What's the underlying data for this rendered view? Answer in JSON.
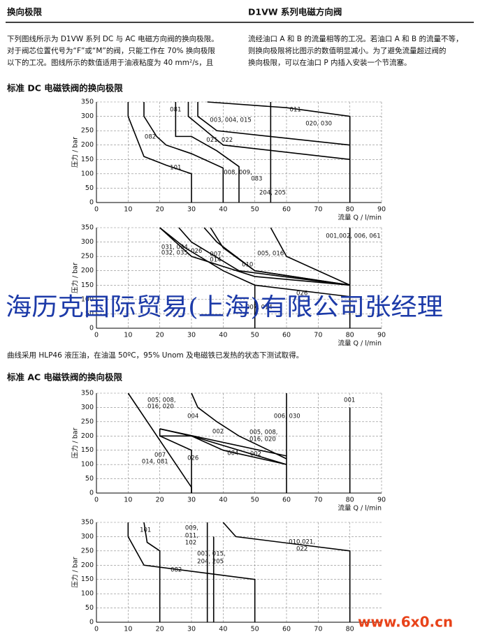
{
  "header": {
    "left": "换向极限",
    "right": "D1VW 系列电磁方向阀"
  },
  "intro": {
    "left": [
      "下列图线所示为 D1VW 系列 DC 与 AC 电磁方向阀的换向极限。",
      "对于阀芯位置代号为“F”或“M”的阀，只能工作在 70% 换向极限",
      "以下的工况。图线所示的数值适用于油液粘度为 40 mm²/s，且"
    ],
    "right": [
      "流经油口 A 和 B 的流量相等的工况。若油口 A 和 B 的流量不等，",
      "则换向极限将比图示的数值明显减小。为了避免流量超过阀的",
      "换向极限，可以在油口 P 内插入安装一个节流塞。"
    ]
  },
  "sections": [
    "标准 DC 电磁铁阀的换向极限",
    "标准 AC 电磁铁阀的换向极限"
  ],
  "caption": "曲线采用 HLP46 液压油，在油温 50ºC，95% Unom 及电磁铁已发热的状态下测试取得。",
  "watermark": "海历克国际贸易(上海)有限公司张经理",
  "watermark_site": "www.6x0.cn",
  "chart_data": [
    {
      "type": "line",
      "x_label": "流量 Q / l/min",
      "y_label": "压力 / bar",
      "color": "#000000",
      "grid": true,
      "xlim": [
        0,
        90
      ],
      "ylim": [
        0,
        350
      ],
      "xticks": [
        0,
        10,
        20,
        30,
        40,
        50,
        60,
        70,
        80,
        90
      ],
      "yticks": [
        0,
        50,
        100,
        150,
        200,
        250,
        300,
        350
      ],
      "series": [
        {
          "x": [
            10,
            10,
            15,
            22,
            30,
            30
          ],
          "values": [
            350,
            300,
            160,
            130,
            100,
            0
          ]
        },
        {
          "x": [
            15,
            15,
            19,
            22,
            30,
            40,
            40
          ],
          "values": [
            350,
            300,
            230,
            200,
            170,
            120,
            0
          ]
        },
        {
          "x": [
            25,
            25,
            30,
            38,
            45,
            45
          ],
          "values": [
            350,
            230,
            230,
            180,
            125,
            0
          ]
        },
        {
          "x": [
            32,
            32,
            38,
            80
          ],
          "values": [
            350,
            300,
            250,
            200
          ]
        },
        {
          "x": [
            29,
            29,
            40,
            80
          ],
          "values": [
            350,
            300,
            200,
            150
          ]
        },
        {
          "x": [
            35,
            60,
            80,
            80
          ],
          "values": [
            350,
            330,
            300,
            0
          ]
        },
        {
          "x": [
            55,
            55
          ],
          "values": [
            350,
            0
          ]
        }
      ],
      "annotations": [
        {
          "text": "081",
          "x": 23.2,
          "y": 323
        },
        {
          "text": "003, 004, 015",
          "x": 35.8,
          "y": 287
        },
        {
          "text": "011",
          "x": 61,
          "y": 323
        },
        {
          "text": "020, 030",
          "x": 66,
          "y": 275
        },
        {
          "text": "082",
          "x": 15.2,
          "y": 229
        },
        {
          "text": "021, 022",
          "x": 34.7,
          "y": 217
        },
        {
          "text": "101",
          "x": 23.2,
          "y": 122
        },
        {
          "text": "008, 009,",
          "x": 40.2,
          "y": 105
        },
        {
          "text": "083",
          "x": 48.8,
          "y": 83
        },
        {
          "text": "204, 205",
          "x": 51.4,
          "y": 34
        }
      ]
    },
    {
      "type": "line",
      "x_label": "流量 Q / l/min",
      "y_label": "压力 / bar",
      "color": "#000000",
      "grid": true,
      "xlim": [
        0,
        90
      ],
      "ylim": [
        0,
        350
      ],
      "xticks": [
        0,
        10,
        20,
        30,
        40,
        50,
        60,
        70,
        80,
        90
      ],
      "yticks": [
        0,
        50,
        100,
        150,
        200,
        250,
        300,
        350
      ],
      "series": [
        {
          "x": [
            80,
            80
          ],
          "values": [
            350,
            0
          ]
        },
        {
          "x": [
            20,
            30,
            50,
            80
          ],
          "values": [
            350,
            250,
            180,
            150
          ]
        },
        {
          "x": [
            20,
            28,
            40,
            50,
            80
          ],
          "values": [
            350,
            280,
            200,
            150,
            110
          ]
        },
        {
          "x": [
            26,
            30,
            45,
            80
          ],
          "values": [
            350,
            300,
            200,
            150
          ]
        },
        {
          "x": [
            34,
            38,
            50,
            80
          ],
          "values": [
            350,
            300,
            200,
            150
          ]
        },
        {
          "x": [
            55,
            60,
            80
          ],
          "values": [
            350,
            250,
            150
          ]
        },
        {
          "x": [
            36,
            40,
            50,
            80
          ],
          "values": [
            350,
            280,
            200,
            150
          ]
        },
        {
          "x": [
            50,
            50
          ],
          "values": [
            150,
            0
          ]
        }
      ],
      "annotations": [
        {
          "text": "001,002, 006, 061",
          "x": 72.4,
          "y": 321
        },
        {
          "text": "031, 034,",
          "x": 20.5,
          "y": 282
        },
        {
          "text": "032, 035,",
          "x": 20.5,
          "y": 263
        },
        {
          "text": "026",
          "x": 29.8,
          "y": 268
        },
        {
          "text": "007,",
          "x": 35.8,
          "y": 258
        },
        {
          "text": "014",
          "x": 35.8,
          "y": 238
        },
        {
          "text": "005, 016",
          "x": 50.8,
          "y": 260
        },
        {
          "text": "010",
          "x": 45.9,
          "y": 221
        },
        {
          "text": "026",
          "x": 63.1,
          "y": 122
        },
        {
          "text": "007, 014",
          "x": 47.2,
          "y": 73
        }
      ]
    },
    {
      "type": "line",
      "x_label": "流量 Q / l/min",
      "y_label": "压力 / bar",
      "color": "#000000",
      "grid": true,
      "xlim": [
        0,
        90
      ],
      "ylim": [
        0,
        350
      ],
      "xticks": [
        0,
        10,
        20,
        30,
        40,
        50,
        60,
        70,
        80,
        90
      ],
      "yticks": [
        0,
        50,
        100,
        150,
        200,
        250,
        300,
        350
      ],
      "series": [
        {
          "x": [
            10,
            30,
            30
          ],
          "values": [
            350,
            20,
            0
          ]
        },
        {
          "x": [
            30,
            32,
            38,
            45,
            60
          ],
          "values": [
            350,
            300,
            250,
            200,
            120
          ]
        },
        {
          "x": [
            20,
            60
          ],
          "values": [
            225,
            130
          ]
        },
        {
          "x": [
            20,
            30,
            60
          ],
          "values": [
            200,
            200,
            100
          ]
        },
        {
          "x": [
            20,
            30,
            40,
            60
          ],
          "values": [
            225,
            200,
            150,
            100
          ]
        },
        {
          "x": [
            20,
            20,
            30,
            30
          ],
          "values": [
            225,
            200,
            150,
            0
          ]
        },
        {
          "x": [
            60,
            60
          ],
          "values": [
            350,
            0
          ]
        },
        {
          "x": [
            80,
            80
          ],
          "values": [
            300,
            0
          ]
        }
      ],
      "annotations": [
        {
          "text": "005, 008,",
          "x": 16.1,
          "y": 325
        },
        {
          "text": "016, 020",
          "x": 16.1,
          "y": 303
        },
        {
          "text": "004",
          "x": 28.7,
          "y": 269
        },
        {
          "text": "002",
          "x": 36.6,
          "y": 215
        },
        {
          "text": "005, 008,",
          "x": 48.3,
          "y": 213
        },
        {
          "text": "016, 020",
          "x": 48.3,
          "y": 188
        },
        {
          "text": "006, 030",
          "x": 56,
          "y": 269
        },
        {
          "text": "001",
          "x": 78.1,
          "y": 325
        },
        {
          "text": "007",
          "x": 18.3,
          "y": 134
        },
        {
          "text": "014, 081",
          "x": 14.3,
          "y": 110
        },
        {
          "text": "026",
          "x": 28.7,
          "y": 122
        },
        {
          "text": "004",
          "x": 41.3,
          "y": 139
        },
        {
          "text": "002",
          "x": 48.5,
          "y": 137
        }
      ]
    },
    {
      "type": "line",
      "y_label": "压力 / bar",
      "color": "#000000",
      "grid": true,
      "xlim": [
        0,
        90
      ],
      "ylim": [
        0,
        350
      ],
      "xticks": [
        0,
        10,
        20,
        30,
        40,
        50,
        60,
        70,
        80
      ],
      "yticks": [
        0,
        50,
        100,
        150,
        200,
        250,
        300,
        350
      ],
      "series": [
        {
          "x": [
            15,
            16,
            20,
            20
          ],
          "values": [
            350,
            280,
            250,
            0
          ]
        },
        {
          "x": [
            10,
            10,
            15,
            50,
            50
          ],
          "values": [
            350,
            300,
            200,
            150,
            0
          ]
        },
        {
          "x": [
            35,
            35
          ],
          "values": [
            350,
            0
          ]
        },
        {
          "x": [
            37,
            37
          ],
          "values": [
            300,
            0
          ]
        },
        {
          "x": [
            40,
            44,
            80,
            80
          ],
          "values": [
            350,
            300,
            250,
            0
          ]
        }
      ],
      "annotations": [
        {
          "text": "101",
          "x": 13.7,
          "y": 323
        },
        {
          "text": "009,",
          "x": 28,
          "y": 330
        },
        {
          "text": "011,",
          "x": 28,
          "y": 303
        },
        {
          "text": "102",
          "x": 28,
          "y": 279
        },
        {
          "text": "003, 015,",
          "x": 31.8,
          "y": 240
        },
        {
          "text": "204, 205",
          "x": 31.8,
          "y": 213
        },
        {
          "text": "082",
          "x": 23.4,
          "y": 183
        },
        {
          "text": "010,021,",
          "x": 60.7,
          "y": 281
        },
        {
          "text": "022",
          "x": 63.1,
          "y": 257
        }
      ]
    }
  ]
}
